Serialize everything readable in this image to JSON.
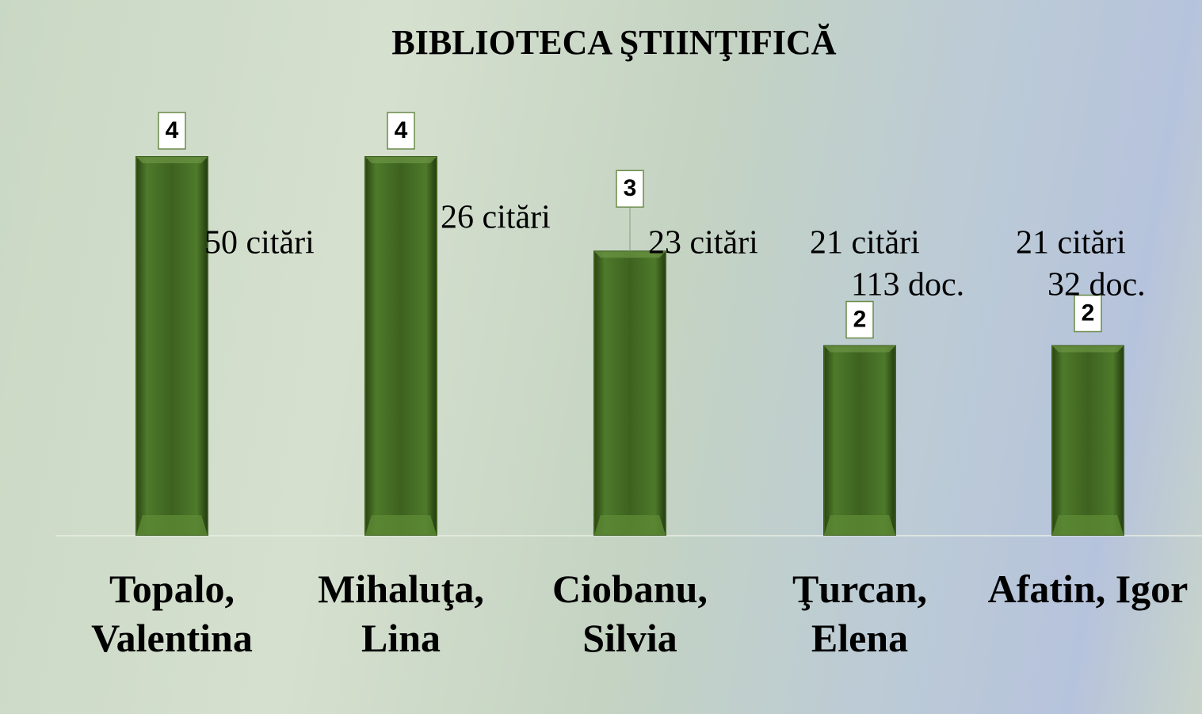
{
  "chart_data": {
    "type": "bar",
    "title": "BIBLIOTECA ŞTIINŢIFICĂ",
    "categories": [
      "Topalo, Valentina",
      "Mihaluţa, Lina",
      "Ciobanu, Silvia",
      "Ţurcan, Elena",
      "Afatin, Igor"
    ],
    "values": [
      4,
      4,
      3,
      2,
      2
    ],
    "color": "#3d5f1f",
    "ylim": [
      0,
      4
    ],
    "annotations": [
      "50 citări",
      "26 citări",
      "23 citări",
      "21 citări",
      "113 doc.",
      "21 citări",
      "32 doc."
    ]
  }
}
